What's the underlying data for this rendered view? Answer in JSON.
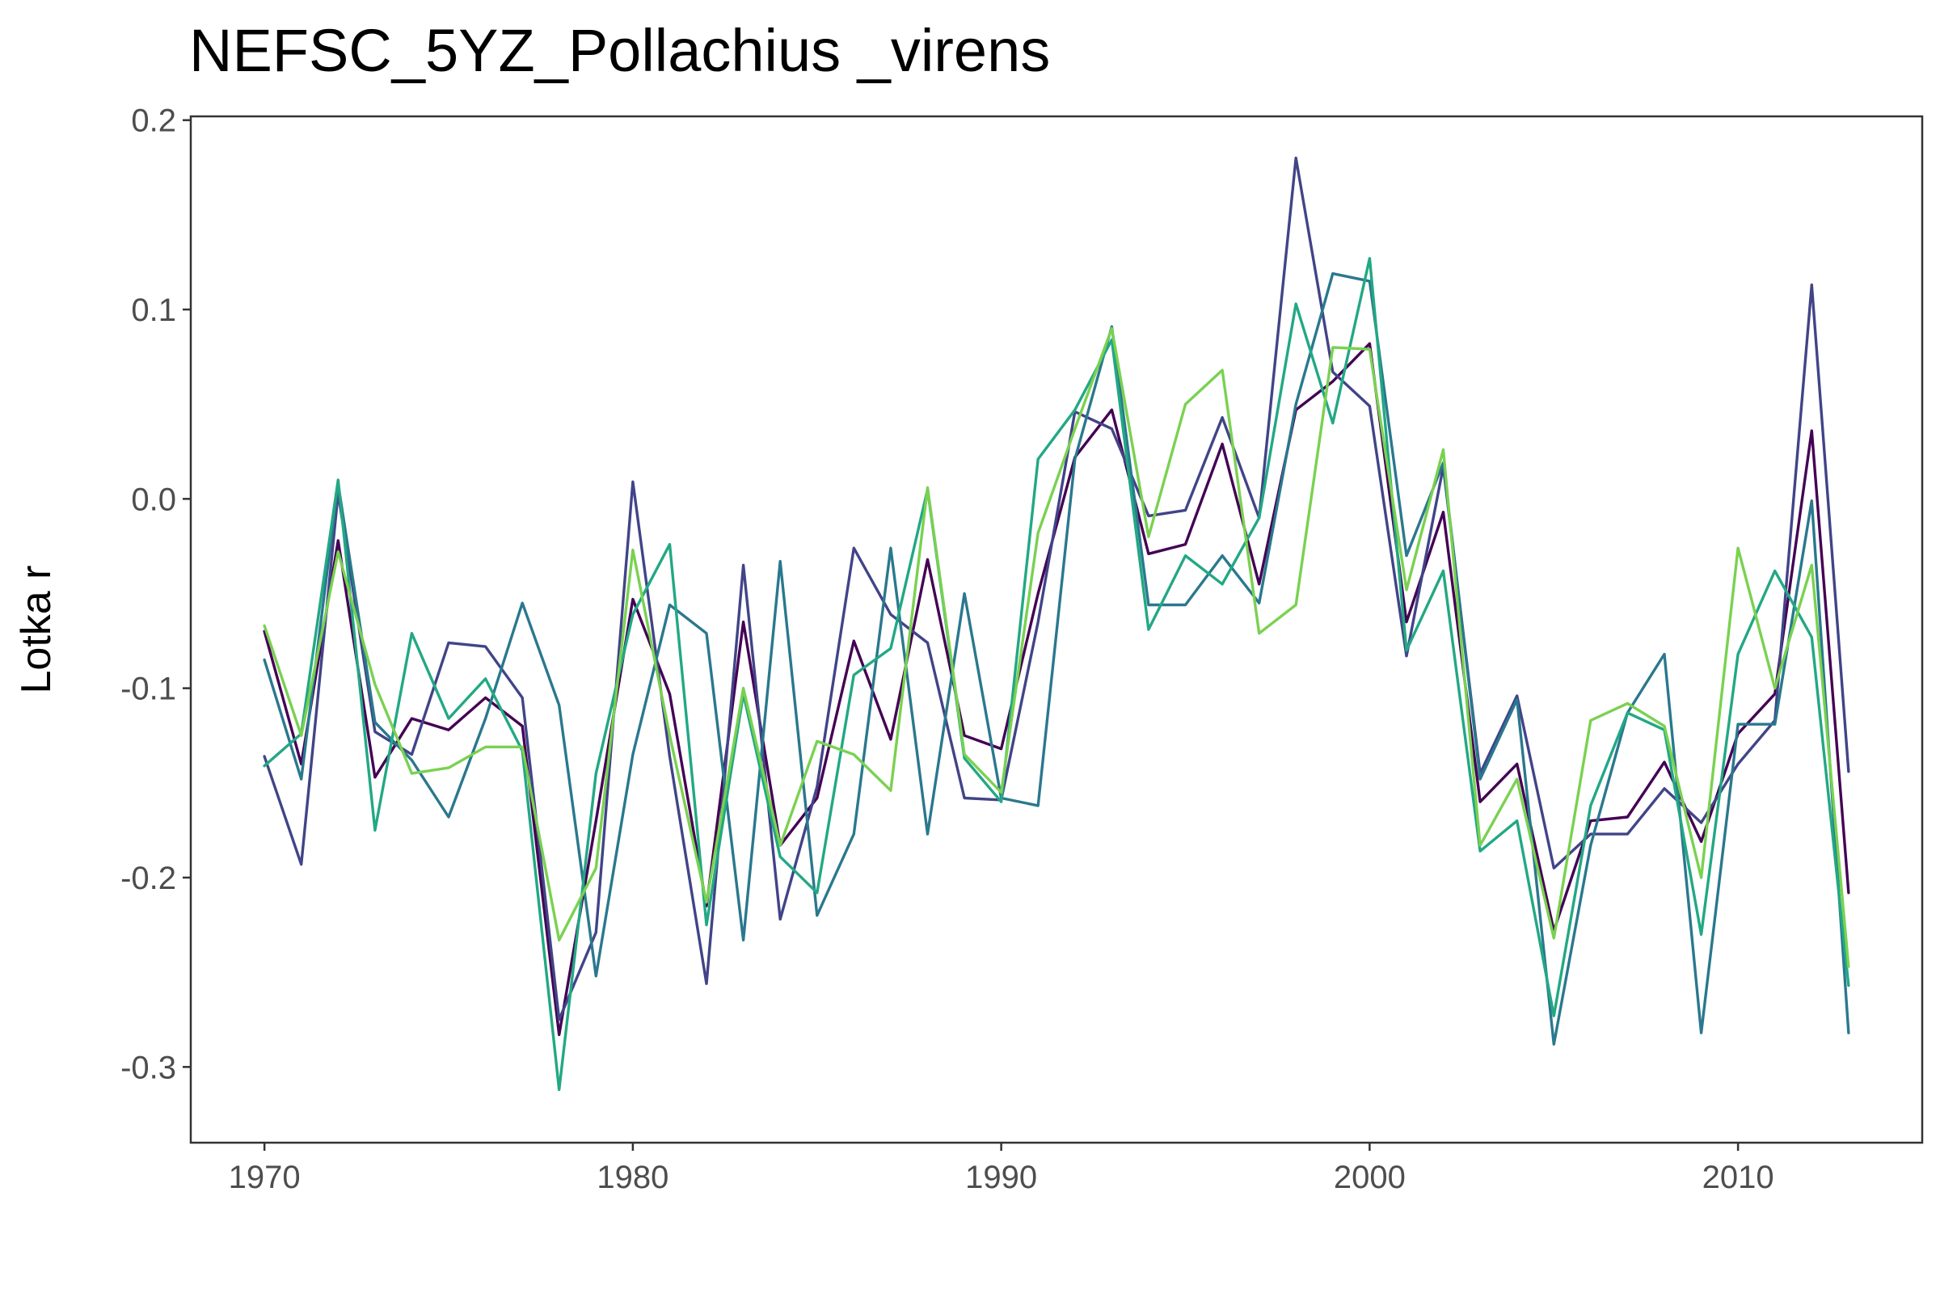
{
  "chart_data": {
    "type": "line",
    "title": "NEFSC_5YZ_Pollachius _virens",
    "xlabel": "",
    "ylabel": "Lotka r",
    "xlim": [
      1968,
      2015
    ],
    "ylim": [
      -0.34,
      0.202
    ],
    "xticks": [
      1970,
      1980,
      1990,
      2000,
      2010
    ],
    "yticks": [
      0.2,
      0.1,
      0.0,
      -0.1,
      -0.2,
      -0.3
    ],
    "ytick_labels": [
      "0.2",
      "0.1",
      "0.0",
      "-0.1",
      "-0.2",
      "-0.3"
    ],
    "grid": false,
    "legend": "none",
    "x": [
      1970,
      1971,
      1972,
      1973,
      1974,
      1975,
      1976,
      1977,
      1978,
      1979,
      1980,
      1981,
      1982,
      1983,
      1984,
      1985,
      1986,
      1987,
      1988,
      1989,
      1990,
      1991,
      1992,
      1993,
      1994,
      1995,
      1996,
      1997,
      1998,
      1999,
      2000,
      2001,
      2002,
      2003,
      2004,
      2005,
      2006,
      2007,
      2008,
      2009,
      2010,
      2011,
      2012,
      2013
    ],
    "series": [
      {
        "color": "#440154",
        "values": [
          -0.07,
          -0.14,
          -0.022,
          -0.147,
          -0.116,
          -0.122,
          -0.105,
          -0.12,
          -0.283,
          -0.17,
          -0.053,
          -0.103,
          -0.215,
          -0.065,
          -0.183,
          -0.158,
          -0.075,
          -0.127,
          -0.032,
          -0.125,
          -0.132,
          -0.05,
          0.022,
          0.047,
          -0.029,
          -0.024,
          0.029,
          -0.045,
          0.047,
          0.062,
          0.082,
          -0.065,
          -0.007,
          -0.16,
          -0.14,
          -0.228,
          -0.17,
          -0.168,
          -0.139,
          -0.181,
          -0.124,
          -0.103,
          0.036,
          -0.208
        ]
      },
      {
        "color": "#414487",
        "values": [
          -0.136,
          -0.193,
          0.003,
          -0.123,
          -0.135,
          -0.076,
          -0.078,
          -0.105,
          -0.275,
          -0.229,
          0.009,
          -0.136,
          -0.256,
          -0.035,
          -0.222,
          -0.152,
          -0.026,
          -0.061,
          -0.076,
          -0.158,
          -0.159,
          -0.065,
          0.046,
          0.037,
          -0.009,
          -0.006,
          0.043,
          -0.01,
          0.18,
          0.067,
          0.049,
          -0.083,
          0.017,
          -0.145,
          -0.104,
          -0.195,
          -0.177,
          -0.177,
          -0.153,
          -0.171,
          -0.14,
          -0.117,
          0.113,
          -0.144
        ]
      },
      {
        "color": "#2a788e",
        "values": [
          -0.085,
          -0.148,
          0.008,
          -0.118,
          -0.138,
          -0.168,
          -0.116,
          -0.055,
          -0.109,
          -0.252,
          -0.135,
          -0.056,
          -0.071,
          -0.233,
          -0.033,
          -0.22,
          -0.177,
          -0.026,
          -0.177,
          -0.05,
          -0.158,
          -0.162,
          0.021,
          0.091,
          -0.056,
          -0.056,
          -0.03,
          -0.055,
          0.05,
          0.119,
          0.115,
          -0.03,
          0.019,
          -0.148,
          -0.106,
          -0.288,
          -0.183,
          -0.113,
          -0.082,
          -0.282,
          -0.119,
          -0.119,
          -0.001,
          -0.282
        ]
      },
      {
        "color": "#22a884",
        "values": [
          -0.141,
          -0.124,
          0.01,
          -0.175,
          -0.071,
          -0.116,
          -0.095,
          -0.133,
          -0.312,
          -0.145,
          -0.061,
          -0.024,
          -0.225,
          -0.103,
          -0.189,
          -0.208,
          -0.093,
          -0.079,
          0.005,
          -0.137,
          -0.16,
          0.021,
          0.047,
          0.084,
          -0.069,
          -0.03,
          -0.045,
          -0.01,
          0.103,
          0.04,
          0.127,
          -0.08,
          -0.038,
          -0.186,
          -0.17,
          -0.273,
          -0.162,
          -0.113,
          -0.122,
          -0.23,
          -0.082,
          -0.038,
          -0.073,
          -0.257
        ]
      },
      {
        "color": "#7ad151",
        "values": [
          -0.067,
          -0.125,
          -0.028,
          -0.098,
          -0.145,
          -0.142,
          -0.131,
          -0.131,
          -0.233,
          -0.195,
          -0.027,
          -0.125,
          -0.213,
          -0.1,
          -0.183,
          -0.128,
          -0.135,
          -0.154,
          0.006,
          -0.135,
          -0.155,
          -0.018,
          0.037,
          0.09,
          -0.02,
          0.05,
          0.068,
          -0.071,
          -0.056,
          0.08,
          0.079,
          -0.048,
          0.026,
          -0.183,
          -0.148,
          -0.232,
          -0.117,
          -0.108,
          -0.12,
          -0.2,
          -0.026,
          -0.1,
          -0.035,
          -0.247
        ]
      }
    ]
  }
}
